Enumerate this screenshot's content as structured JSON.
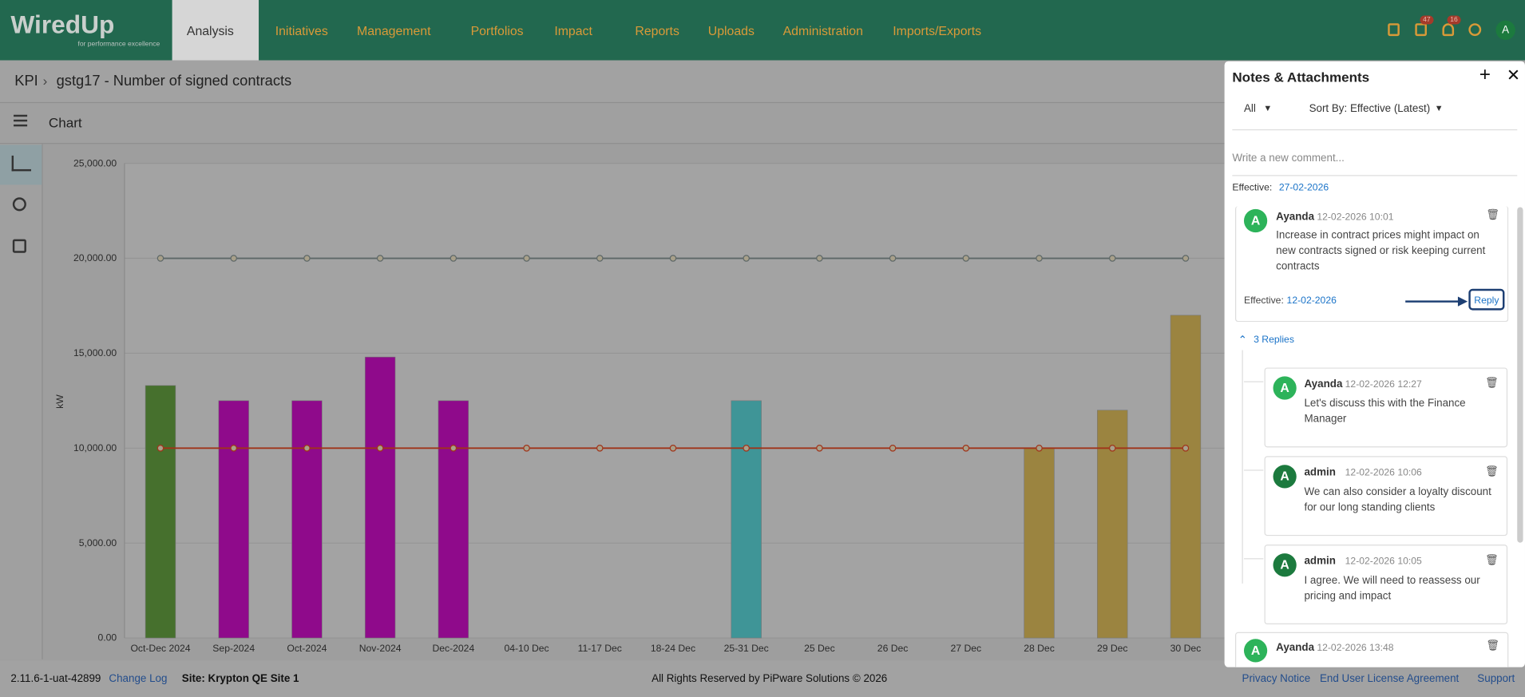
{
  "header": {
    "logo": "WiredUp",
    "tagline": "for performance excellence",
    "nav": [
      "Analysis",
      "Initiatives",
      "Management",
      "Portfolios",
      "Impact",
      "Reports",
      "Uploads",
      "Administration",
      "Imports/Exports"
    ],
    "badges": [
      "47",
      "16"
    ],
    "avatar": "A"
  },
  "breadcrumb": {
    "root": "KPI",
    "page": "gstg17 - Number of signed contracts"
  },
  "section": "Chart",
  "chart_data": {
    "type": "bar",
    "y_label": "kW",
    "categories": [
      "Oct-Dec 2024",
      "Sep-2024",
      "Oct-2024",
      "Nov-2024",
      "Dec-2024",
      "04-10 Dec",
      "11-17 Dec",
      "18-24 Dec",
      "25-31 Dec",
      "25 Dec",
      "26 Dec",
      "27 Dec",
      "28 Dec",
      "29 Dec",
      "30 Dec"
    ],
    "ylim": [
      0,
      25000
    ],
    "yticks": [
      {
        "value": 0,
        "label": "0.00"
      },
      {
        "value": 5000,
        "label": "5,000.00"
      },
      {
        "value": 10000,
        "label": "10,000.00"
      },
      {
        "value": 15000,
        "label": "15,000.00"
      },
      {
        "value": 20000,
        "label": "20,000.00"
      },
      {
        "value": 25000,
        "label": "25,000.00"
      }
    ],
    "grid": true,
    "series": [
      {
        "type": "bar",
        "colors": [
          "#46702d",
          "#8f0a8b",
          "#8f0a8b",
          "#8f0a8b",
          "#8f0a8b",
          null,
          null,
          null,
          "#3f9597",
          null,
          null,
          null,
          "#9b8440",
          "#9b8440",
          "#9b8440"
        ],
        "values": [
          13300,
          12500,
          12500,
          14800,
          12500,
          null,
          null,
          null,
          12500,
          null,
          null,
          null,
          10000,
          12000,
          17000
        ]
      },
      {
        "type": "line",
        "color": "#a0341a",
        "values": [
          10000,
          10000,
          10000,
          10000,
          10000,
          10000,
          10000,
          10000,
          10000,
          10000,
          10000,
          10000,
          10000,
          10000,
          10000
        ]
      },
      {
        "type": "line",
        "color": "#5e6868",
        "values": [
          20000,
          20000,
          20000,
          20000,
          20000,
          20000,
          20000,
          20000,
          20000,
          20000,
          20000,
          20000,
          20000,
          20000,
          20000
        ]
      }
    ]
  },
  "notes": {
    "title": "Notes & Attachments",
    "filter": "All",
    "sort": "Sort By: Effective (Latest)",
    "placeholder": "Write a new comment...",
    "effective_label": "Effective:",
    "effective": "27-02-2026",
    "comment": {
      "avatar": "A",
      "author": "Ayanda",
      "time": "12-02-2026 10:01",
      "text": "Increase in contract prices might impact on new contracts signed or risk keeping current contracts",
      "effective_label": "Effective:",
      "effective": "12-02-2026",
      "reply": "Reply"
    },
    "replies_toggle": "3 Replies",
    "replies": [
      {
        "avatar": "A",
        "author": "Ayanda",
        "time": "12-02-2026 12:27",
        "text": "Let's discuss this with the Finance Manager"
      },
      {
        "avatar": "A",
        "author": "admin",
        "time": "12-02-2026 10:06",
        "text": "We can also consider a loyalty discount for our long standing clients"
      },
      {
        "avatar": "A",
        "author": "admin",
        "time": "12-02-2026 10:05",
        "text": "I agree. We will need to reassess our pricing and impact"
      }
    ],
    "next": {
      "avatar": "A",
      "author": "Ayanda",
      "time": "12-02-2026 13:48"
    }
  },
  "footer": {
    "version": "2.11.6-1-uat-42899",
    "changelog": "Change Log",
    "site": "Site: Krypton QE Site 1",
    "rights": "All Rights Reserved by PiPware Solutions © 2026",
    "links": [
      "Privacy Notice",
      "End User License Agreement",
      "Support"
    ]
  }
}
